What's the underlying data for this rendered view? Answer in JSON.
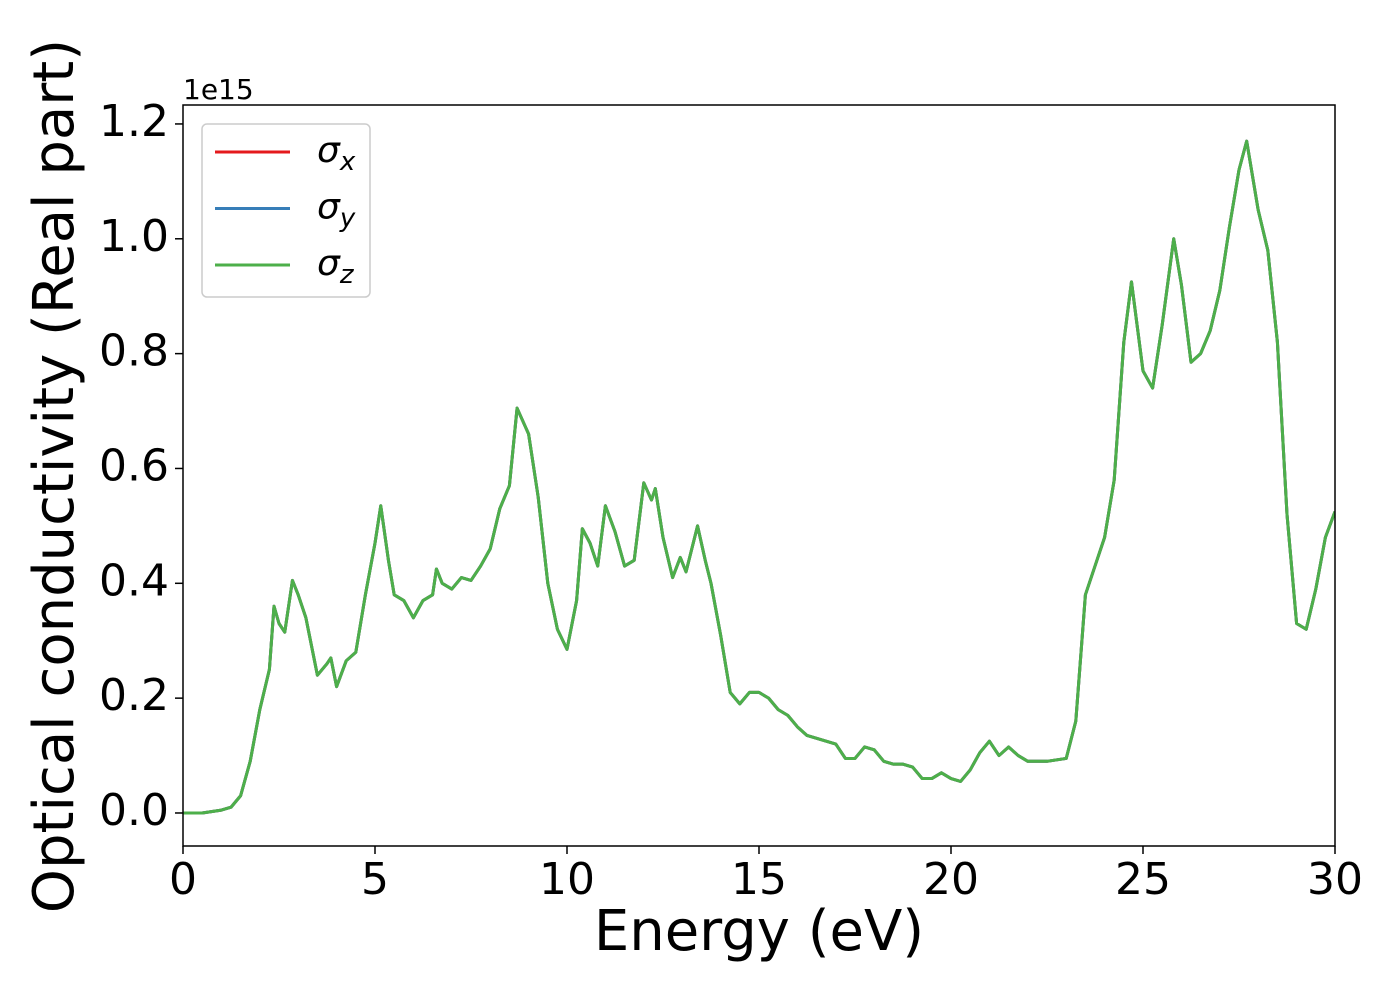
{
  "chart_data": {
    "type": "line",
    "xlabel": "Energy (eV)",
    "ylabel": "Optical conductivity (Real part)",
    "y_offset_label": "1e15",
    "x": [
      0,
      0.5,
      1,
      1.25,
      1.5,
      1.75,
      2,
      2.25,
      2.37,
      2.5,
      2.65,
      2.85,
      3,
      3.2,
      3.5,
      3.75,
      3.85,
      4,
      4.25,
      4.5,
      4.75,
      5,
      5.15,
      5.35,
      5.5,
      5.75,
      6,
      6.25,
      6.5,
      6.6,
      6.75,
      7,
      7.25,
      7.5,
      7.75,
      8,
      8.25,
      8.5,
      8.7,
      9,
      9.25,
      9.5,
      9.75,
      10,
      10.25,
      10.4,
      10.6,
      10.8,
      11,
      11.25,
      11.5,
      11.75,
      12,
      12.2,
      12.3,
      12.5,
      12.75,
      12.95,
      13.1,
      13.4,
      13.6,
      13.75,
      14,
      14.25,
      14.5,
      14.75,
      15,
      15.25,
      15.5,
      15.75,
      16,
      16.25,
      16.5,
      16.75,
      17,
      17.25,
      17.5,
      17.75,
      18,
      18.25,
      18.5,
      18.75,
      19,
      19.25,
      19.5,
      19.75,
      20,
      20.25,
      20.5,
      20.75,
      21,
      21.25,
      21.5,
      21.75,
      22,
      22.5,
      23,
      23.25,
      23.5,
      23.75,
      24,
      24.25,
      24.5,
      24.7,
      25,
      25.25,
      25.5,
      25.8,
      26,
      26.25,
      26.5,
      26.75,
      27,
      27.25,
      27.5,
      27.7,
      28,
      28.25,
      28.5,
      28.75,
      29,
      29.25,
      29.5,
      29.75,
      30
    ],
    "series": [
      {
        "name": "σx",
        "color": "#e41a1c",
        "values": [
          0,
          0,
          0.005,
          0.01,
          0.03,
          0.09,
          0.18,
          0.25,
          0.36,
          0.33,
          0.315,
          0.405,
          0.38,
          0.34,
          0.24,
          0.26,
          0.27,
          0.22,
          0.265,
          0.28,
          0.38,
          0.47,
          0.535,
          0.44,
          0.38,
          0.37,
          0.34,
          0.37,
          0.38,
          0.425,
          0.4,
          0.39,
          0.41,
          0.405,
          0.43,
          0.46,
          0.53,
          0.57,
          0.705,
          0.66,
          0.55,
          0.4,
          0.32,
          0.285,
          0.37,
          0.495,
          0.47,
          0.43,
          0.535,
          0.49,
          0.43,
          0.44,
          0.575,
          0.545,
          0.565,
          0.48,
          0.41,
          0.445,
          0.42,
          0.5,
          0.44,
          0.4,
          0.31,
          0.21,
          0.19,
          0.21,
          0.21,
          0.2,
          0.18,
          0.17,
          0.15,
          0.135,
          0.13,
          0.125,
          0.12,
          0.095,
          0.095,
          0.115,
          0.11,
          0.09,
          0.085,
          0.085,
          0.08,
          0.06,
          0.06,
          0.07,
          0.06,
          0.055,
          0.075,
          0.105,
          0.125,
          0.1,
          0.115,
          0.1,
          0.09,
          0.09,
          0.095,
          0.16,
          0.38,
          0.43,
          0.48,
          0.58,
          0.82,
          0.925,
          0.77,
          0.74,
          0.85,
          1.0,
          0.92,
          0.785,
          0.8,
          0.84,
          0.91,
          1.02,
          1.12,
          1.17,
          1.05,
          0.98,
          0.82,
          0.52,
          0.33,
          0.32,
          0.39,
          0.48,
          0.525
        ]
      },
      {
        "name": "σy",
        "color": "#377eb8",
        "values": [
          0,
          0,
          0.005,
          0.01,
          0.03,
          0.09,
          0.18,
          0.25,
          0.36,
          0.33,
          0.315,
          0.405,
          0.38,
          0.34,
          0.24,
          0.26,
          0.27,
          0.22,
          0.265,
          0.28,
          0.38,
          0.47,
          0.535,
          0.44,
          0.38,
          0.37,
          0.34,
          0.37,
          0.38,
          0.425,
          0.4,
          0.39,
          0.41,
          0.405,
          0.43,
          0.46,
          0.53,
          0.57,
          0.705,
          0.66,
          0.55,
          0.4,
          0.32,
          0.285,
          0.37,
          0.495,
          0.47,
          0.43,
          0.535,
          0.49,
          0.43,
          0.44,
          0.575,
          0.545,
          0.565,
          0.48,
          0.41,
          0.445,
          0.42,
          0.5,
          0.44,
          0.4,
          0.31,
          0.21,
          0.19,
          0.21,
          0.21,
          0.2,
          0.18,
          0.17,
          0.15,
          0.135,
          0.13,
          0.125,
          0.12,
          0.095,
          0.095,
          0.115,
          0.11,
          0.09,
          0.085,
          0.085,
          0.08,
          0.06,
          0.06,
          0.07,
          0.06,
          0.055,
          0.075,
          0.105,
          0.125,
          0.1,
          0.115,
          0.1,
          0.09,
          0.09,
          0.095,
          0.16,
          0.38,
          0.43,
          0.48,
          0.58,
          0.82,
          0.925,
          0.77,
          0.74,
          0.85,
          1.0,
          0.92,
          0.785,
          0.8,
          0.84,
          0.91,
          1.02,
          1.12,
          1.17,
          1.05,
          0.98,
          0.82,
          0.52,
          0.33,
          0.32,
          0.39,
          0.48,
          0.525
        ]
      },
      {
        "name": "σz",
        "color": "#4daf4a",
        "values": [
          0,
          0,
          0.005,
          0.01,
          0.03,
          0.09,
          0.18,
          0.25,
          0.36,
          0.33,
          0.315,
          0.405,
          0.38,
          0.34,
          0.24,
          0.26,
          0.27,
          0.22,
          0.265,
          0.28,
          0.38,
          0.47,
          0.535,
          0.44,
          0.38,
          0.37,
          0.34,
          0.37,
          0.38,
          0.425,
          0.4,
          0.39,
          0.41,
          0.405,
          0.43,
          0.46,
          0.53,
          0.57,
          0.705,
          0.66,
          0.55,
          0.4,
          0.32,
          0.285,
          0.37,
          0.495,
          0.47,
          0.43,
          0.535,
          0.49,
          0.43,
          0.44,
          0.575,
          0.545,
          0.565,
          0.48,
          0.41,
          0.445,
          0.42,
          0.5,
          0.44,
          0.4,
          0.31,
          0.21,
          0.19,
          0.21,
          0.21,
          0.2,
          0.18,
          0.17,
          0.15,
          0.135,
          0.13,
          0.125,
          0.12,
          0.095,
          0.095,
          0.115,
          0.11,
          0.09,
          0.085,
          0.085,
          0.08,
          0.06,
          0.06,
          0.07,
          0.06,
          0.055,
          0.075,
          0.105,
          0.125,
          0.1,
          0.115,
          0.1,
          0.09,
          0.09,
          0.095,
          0.16,
          0.38,
          0.43,
          0.48,
          0.58,
          0.82,
          0.925,
          0.77,
          0.74,
          0.85,
          1.0,
          0.92,
          0.785,
          0.8,
          0.84,
          0.91,
          1.02,
          1.12,
          1.17,
          1.05,
          0.98,
          0.82,
          0.52,
          0.33,
          0.32,
          0.39,
          0.48,
          0.525
        ]
      }
    ],
    "xlim": [
      0,
      30
    ],
    "xticks": [
      0,
      5,
      10,
      15,
      20,
      25,
      30
    ],
    "ylim": [
      -0.0575,
      1.233
    ],
    "yticks": [
      {
        "value": 0,
        "label": "0.0"
      },
      0.2,
      0.4,
      0.6,
      0.8,
      {
        "value": 1,
        "label": "1.0"
      },
      1.2
    ],
    "grid": false,
    "legend": "upper left"
  }
}
